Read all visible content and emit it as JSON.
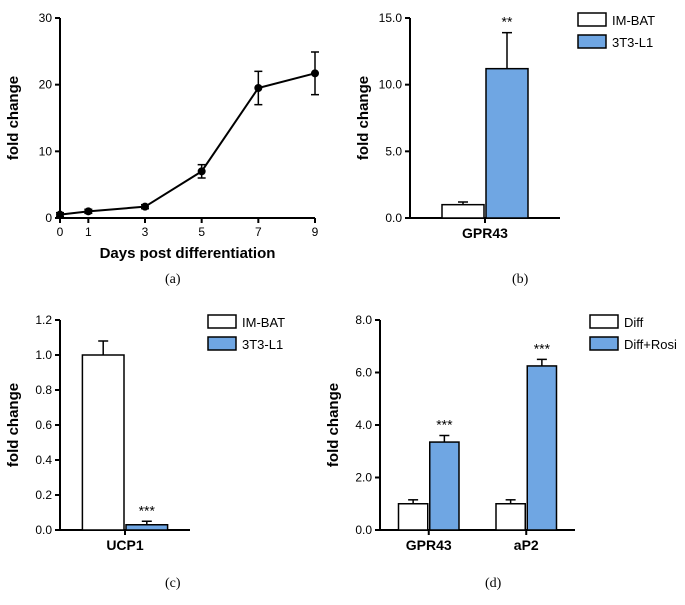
{
  "colors": {
    "bg": "#ffffff",
    "axis": "#000000",
    "line": "#000000",
    "marker_fill": "#000000",
    "imbat_fill": "#ffffff",
    "t3l1_fill": "#6fa6e3",
    "diff_fill": "#ffffff",
    "diffrosi_fill": "#6fa6e3",
    "text": "#000000"
  },
  "font": {
    "axis_label": 15,
    "tick": 12,
    "legend": 13,
    "panel_label": 14,
    "sig": 14
  },
  "a": {
    "type": "line",
    "xlabel": "Days post differentiation",
    "ylabel": "fold change",
    "x_ticks": [
      0,
      1,
      3,
      5,
      7,
      9
    ],
    "y_ticks": [
      0,
      10,
      20,
      30
    ],
    "ylim": [
      0,
      30
    ],
    "points": [
      {
        "x": 0,
        "y": 0.5,
        "err": 0.3
      },
      {
        "x": 1,
        "y": 1.0,
        "err": 0.3
      },
      {
        "x": 3,
        "y": 1.7,
        "err": 0.3
      },
      {
        "x": 5,
        "y": 7.0,
        "err": 1.0
      },
      {
        "x": 7,
        "y": 19.5,
        "err": 2.5
      },
      {
        "x": 9,
        "y": 21.7,
        "err": 3.2
      }
    ],
    "marker_size": 4,
    "line_width": 2,
    "label": "(a)"
  },
  "b": {
    "type": "bar",
    "ylabel": "fold change",
    "y_ticks": [
      0.0,
      5.0,
      10.0,
      15.0
    ],
    "ylim": [
      0,
      15
    ],
    "categories": [
      "GPR43"
    ],
    "series": [
      {
        "name": "IM-BAT",
        "fill_key": "imbat_fill",
        "value": 1.0,
        "err": 0.2
      },
      {
        "name": "3T3-L1",
        "fill_key": "t3l1_fill",
        "value": 11.2,
        "err": 2.7
      }
    ],
    "significance": {
      "label": "**",
      "target": 1
    },
    "bar_width": 0.55,
    "label": "(b)"
  },
  "c": {
    "type": "bar",
    "ylabel": "fold change",
    "y_ticks": [
      0.0,
      0.2,
      0.4,
      0.6,
      0.8,
      1.0,
      1.2
    ],
    "ylim": [
      0,
      1.2
    ],
    "categories": [
      "UCP1"
    ],
    "series": [
      {
        "name": "IM-BAT",
        "fill_key": "imbat_fill",
        "value": 1.0,
        "err": 0.08
      },
      {
        "name": "3T3-L1",
        "fill_key": "t3l1_fill",
        "value": 0.03,
        "err": 0.02
      }
    ],
    "significance": {
      "label": "***",
      "target": 1
    },
    "bar_width": 0.55,
    "label": "(c)"
  },
  "d": {
    "type": "grouped-bar",
    "ylabel": "fold change",
    "y_ticks": [
      0.0,
      2.0,
      4.0,
      6.0,
      8.0
    ],
    "ylim": [
      0,
      8
    ],
    "categories": [
      "GPR43",
      "aP2"
    ],
    "series": [
      {
        "name": "Diff",
        "fill_key": "diff_fill",
        "values": [
          1.0,
          1.0
        ],
        "errs": [
          0.15,
          0.15
        ]
      },
      {
        "name": "Diff+Rosi",
        "fill_key": "diffrosi_fill",
        "values": [
          3.35,
          6.25
        ],
        "errs": [
          0.25,
          0.25
        ]
      }
    ],
    "significance": [
      {
        "cat": 0,
        "series": 1,
        "label": "***"
      },
      {
        "cat": 1,
        "series": 1,
        "label": "***"
      }
    ],
    "bar_width": 0.55,
    "label": "(d)"
  }
}
